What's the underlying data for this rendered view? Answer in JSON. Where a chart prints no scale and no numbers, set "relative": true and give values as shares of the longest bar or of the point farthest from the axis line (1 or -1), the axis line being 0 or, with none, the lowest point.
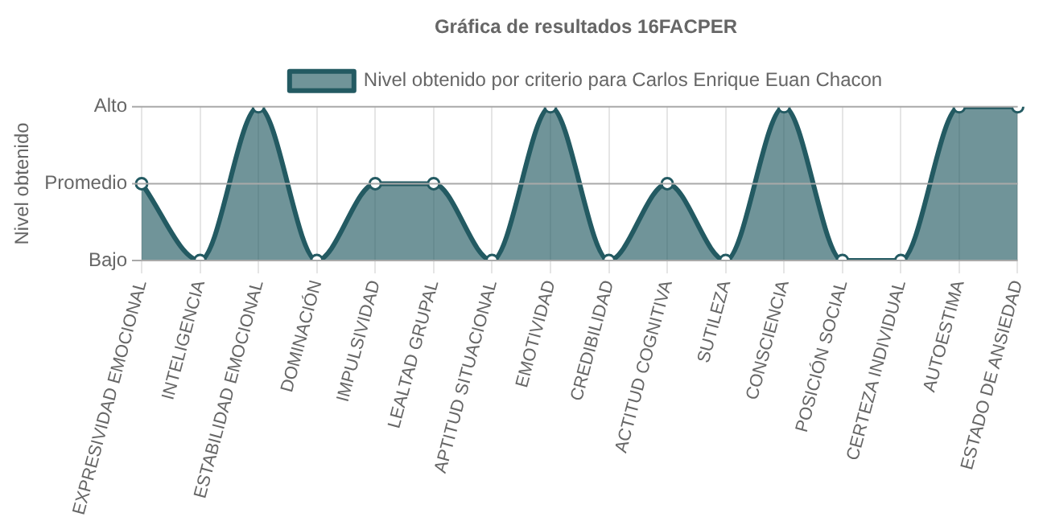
{
  "chart_data": {
    "type": "area",
    "title": "Gráfica de resultados 16FACPER",
    "ylabel": "Nivel obtenido",
    "relative": true,
    "categories": [
      "EXPRESIVIDAD EMOCIONAL",
      "INTELIGENCIA",
      "ESTABILIDAD EMOCIONAL",
      "DOMINACIÓN",
      "IMPULSIVIDAD",
      "LEALTAD GRUPAL",
      "APTITUD SITUACIONAL",
      "EMOTIVIDAD",
      "CREDIBILIDAD",
      "ACTITUD COGNITIVA",
      "SUTILEZA",
      "CONSCIENCIA",
      "POSICIÓN SOCIAL",
      "CERTEZA INDIVIDUAL",
      "AUTOESTIMA",
      "ESTADO DE ANSIEDAD"
    ],
    "series": [
      {
        "name": "Nivel obtenido por criterio para Carlos Enrique Euan Chacon",
        "color": "#235a62",
        "values": [
          0.5,
          0,
          1,
          0,
          0.5,
          0.5,
          0,
          1,
          0,
          0.5,
          0,
          1,
          0,
          0,
          1,
          1
        ]
      }
    ],
    "ref_lines": [
      {
        "axis": "y",
        "value": 0,
        "label": "Bajo"
      },
      {
        "axis": "y",
        "value": 0.5,
        "label": "Promedio"
      },
      {
        "axis": "y",
        "value": 1,
        "label": "Alto"
      }
    ],
    "grid": "x",
    "legend": "top",
    "marker": "circle",
    "line_style": "solid"
  }
}
